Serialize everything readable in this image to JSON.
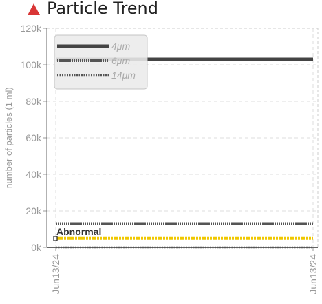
{
  "header": {
    "title": "Particle Trend",
    "warning_icon": "warning-triangle-icon",
    "warning_color": "#d93636"
  },
  "chart_data": {
    "type": "line",
    "title": "Particle Trend",
    "ylabel": "number of particles (1 ml)",
    "xlabel": "",
    "ylim": [
      0,
      120000
    ],
    "y_ticks": [
      "0k",
      "20k",
      "40k",
      "60k",
      "80k",
      "100k",
      "120k"
    ],
    "y_tick_values": [
      0,
      20000,
      40000,
      60000,
      80000,
      100000,
      120000
    ],
    "x_ticks": [
      "Jun13/24",
      "Jun13/24"
    ],
    "grid": true,
    "legend_position": "top-left",
    "series": [
      {
        "name": "4μm",
        "values": [
          103000,
          103000
        ],
        "color": "#444444",
        "style": "solid"
      },
      {
        "name": "6μm",
        "values": [
          13000,
          13000
        ],
        "color": "#555555",
        "style": "dotted-bold"
      },
      {
        "name": "14μm",
        "values": [
          0,
          0
        ],
        "color": "#555555",
        "style": "dotted"
      }
    ],
    "threshold": {
      "label": "Abnormal",
      "value": 5000,
      "color": "#f0c800"
    }
  }
}
